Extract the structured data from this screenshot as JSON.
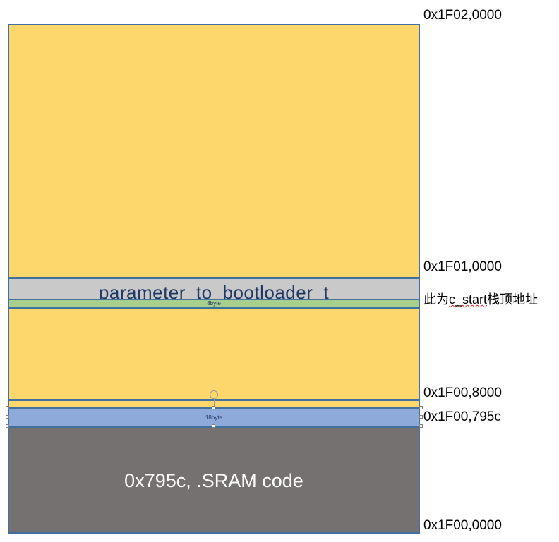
{
  "diagram": {
    "regions": {
      "parameter_label": "parameter_to_bootloader_t",
      "eight_byte_label": "8byte",
      "eighteen_byte_label": "18byte",
      "sram_label": "0x795c, .SRAM code"
    },
    "addresses": {
      "top": "0x1F02,0000",
      "mid_1": "0x1F01,0000",
      "stack_note_prefix": "此为",
      "stack_note_symbol": "c_start",
      "stack_note_suffix": "栈顶地址",
      "addr_8000": "0x1F00,8000",
      "addr_795c": "0x1F00,795c",
      "bottom": "0x1F00,0000"
    },
    "colors": {
      "free_region": "#fdd66c",
      "parameter_region": "#c9c9c9",
      "eight_byte_region": "#a8d08d",
      "eighteen_byte_region": "#8eaadb",
      "sram_region": "#767171",
      "border": "#41719c"
    }
  }
}
